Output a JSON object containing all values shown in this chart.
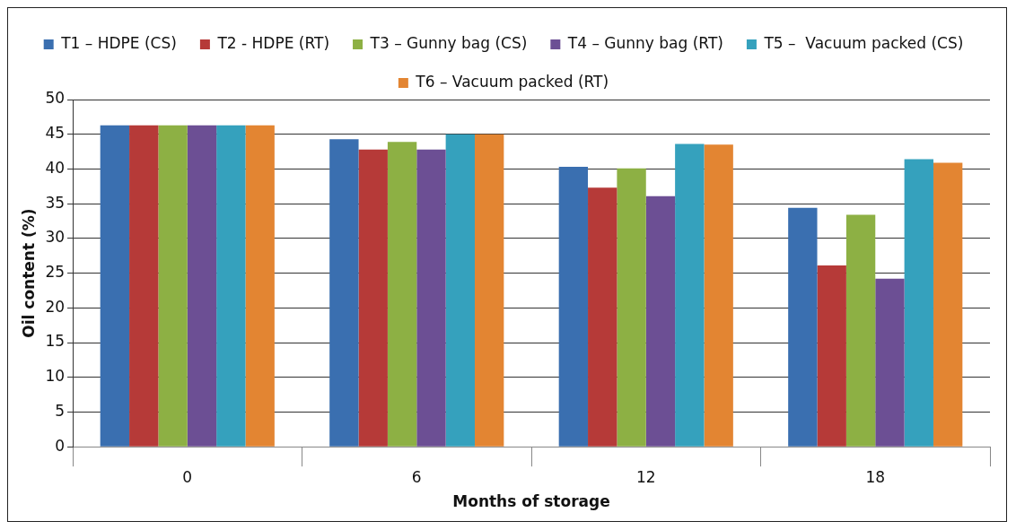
{
  "chart_data": {
    "type": "bar",
    "xlabel": "Months of storage",
    "ylabel": "Oil content (%)",
    "categories": [
      "0",
      "6",
      "12",
      "18"
    ],
    "series": [
      {
        "name": "T1 – HDPE (CS)",
        "color": "#3a6fb0",
        "values": [
          46.3,
          44.3,
          40.3,
          34.4
        ]
      },
      {
        "name": "T2 - HDPE (RT)",
        "color": "#b63a38",
        "values": [
          46.3,
          42.8,
          37.3,
          26.1
        ]
      },
      {
        "name": "T3 – Gunny bag (CS)",
        "color": "#8db044",
        "values": [
          46.3,
          43.9,
          40.1,
          33.4
        ]
      },
      {
        "name": "T4 – Gunny bag (RT)",
        "color": "#6c4f94",
        "values": [
          46.3,
          42.8,
          36.1,
          24.2
        ]
      },
      {
        "name": "T5 –  Vacuum packed (CS)",
        "color": "#35a1bd",
        "values": [
          46.3,
          45.0,
          43.6,
          41.4
        ]
      },
      {
        "name": "T6 – Vacuum packed (RT)",
        "color": "#e38532",
        "values": [
          46.3,
          45.0,
          43.5,
          40.9
        ]
      }
    ],
    "ylim": [
      0,
      50
    ],
    "yticks": [
      0,
      5,
      10,
      15,
      20,
      25,
      30,
      35,
      40,
      45,
      50
    ],
    "grid": "y",
    "legend": "top"
  }
}
